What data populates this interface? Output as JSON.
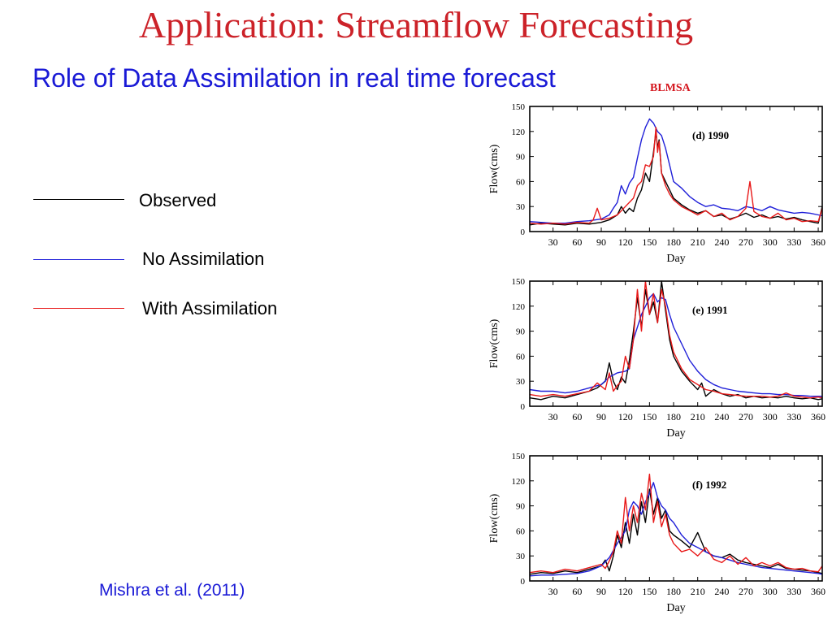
{
  "slide": {
    "title": "Application: Streamflow Forecasting",
    "subtitle": "Role of Data Assimilation in real time forecast",
    "model_tag": "BLMSA",
    "citation": "Mishra et al. (2011)"
  },
  "legend": [
    {
      "label": "Observed",
      "color": "#000000"
    },
    {
      "label": "No Assimilation",
      "color": "#1f1fd8"
    },
    {
      "label": "With Assimilation",
      "color": "#e81818"
    }
  ],
  "chart_data": [
    {
      "type": "line",
      "panel_label": "(d) 1990",
      "xlabel": "Day",
      "ylabel": "Flow(cms)",
      "xlim": [
        1,
        365
      ],
      "ylim": [
        0,
        150
      ],
      "xticks": [
        30,
        60,
        90,
        120,
        150,
        180,
        210,
        240,
        270,
        300,
        330,
        360
      ],
      "yticks": [
        0,
        30,
        60,
        90,
        120,
        150
      ],
      "series": [
        {
          "name": "Observed",
          "color": "#000000",
          "x": [
            1,
            15,
            30,
            45,
            60,
            75,
            90,
            100,
            110,
            115,
            120,
            125,
            130,
            135,
            140,
            145,
            150,
            155,
            158,
            160,
            162,
            165,
            170,
            175,
            180,
            190,
            200,
            210,
            220,
            230,
            240,
            250,
            260,
            270,
            280,
            290,
            300,
            310,
            320,
            330,
            340,
            350,
            360,
            365
          ],
          "y": [
            8,
            10,
            9,
            8,
            10,
            9,
            11,
            14,
            20,
            30,
            22,
            28,
            24,
            40,
            50,
            70,
            60,
            95,
            120,
            100,
            110,
            70,
            60,
            50,
            40,
            32,
            26,
            22,
            25,
            18,
            20,
            15,
            18,
            22,
            17,
            20,
            16,
            18,
            15,
            17,
            14,
            12,
            10,
            30
          ]
        },
        {
          "name": "No Assimilation",
          "color": "#1f1fd8",
          "x": [
            1,
            15,
            30,
            45,
            60,
            75,
            90,
            100,
            105,
            110,
            115,
            120,
            125,
            130,
            135,
            140,
            145,
            150,
            155,
            160,
            165,
            170,
            175,
            180,
            190,
            200,
            210,
            220,
            230,
            240,
            250,
            260,
            270,
            280,
            290,
            300,
            310,
            320,
            330,
            340,
            350,
            360,
            365
          ],
          "y": [
            12,
            11,
            10,
            10,
            12,
            13,
            15,
            20,
            28,
            35,
            55,
            45,
            58,
            65,
            88,
            110,
            125,
            135,
            130,
            120,
            115,
            100,
            80,
            60,
            52,
            42,
            35,
            30,
            32,
            28,
            27,
            25,
            30,
            28,
            25,
            30,
            26,
            24,
            22,
            23,
            22,
            20,
            19
          ]
        },
        {
          "name": "With Assimilation",
          "color": "#e81818",
          "x": [
            1,
            15,
            30,
            45,
            60,
            75,
            80,
            85,
            90,
            100,
            110,
            120,
            125,
            130,
            135,
            140,
            145,
            150,
            155,
            158,
            160,
            162,
            165,
            170,
            175,
            180,
            190,
            200,
            210,
            220,
            230,
            240,
            250,
            260,
            270,
            275,
            280,
            290,
            300,
            310,
            320,
            330,
            340,
            350,
            360,
            365
          ],
          "y": [
            10,
            9,
            10,
            9,
            11,
            10,
            14,
            28,
            14,
            16,
            20,
            30,
            35,
            40,
            55,
            60,
            80,
            78,
            90,
            125,
            95,
            108,
            70,
            55,
            45,
            38,
            30,
            25,
            20,
            25,
            18,
            22,
            14,
            18,
            28,
            60,
            24,
            18,
            16,
            22,
            14,
            16,
            12,
            13,
            12,
            28
          ]
        }
      ]
    },
    {
      "type": "line",
      "panel_label": "(e) 1991",
      "xlabel": "Day",
      "ylabel": "Flow(cms)",
      "xlim": [
        1,
        365
      ],
      "ylim": [
        0,
        150
      ],
      "xticks": [
        30,
        60,
        90,
        120,
        150,
        180,
        210,
        240,
        270,
        300,
        330,
        360
      ],
      "yticks": [
        0,
        30,
        60,
        90,
        120,
        150
      ],
      "series": [
        {
          "name": "Observed",
          "color": "#000000",
          "x": [
            1,
            15,
            30,
            45,
            60,
            75,
            85,
            95,
            100,
            105,
            110,
            115,
            120,
            125,
            130,
            135,
            140,
            145,
            150,
            155,
            160,
            165,
            170,
            175,
            180,
            190,
            200,
            210,
            215,
            220,
            230,
            240,
            250,
            260,
            270,
            280,
            290,
            300,
            310,
            320,
            330,
            340,
            350,
            360,
            365
          ],
          "y": [
            10,
            8,
            12,
            10,
            14,
            18,
            22,
            30,
            52,
            30,
            20,
            35,
            28,
            55,
            90,
            130,
            95,
            140,
            110,
            125,
            100,
            150,
            115,
            80,
            60,
            42,
            30,
            20,
            28,
            12,
            20,
            15,
            12,
            14,
            10,
            12,
            10,
            11,
            10,
            12,
            10,
            9,
            10,
            8,
            9
          ]
        },
        {
          "name": "No Assimilation",
          "color": "#1f1fd8",
          "x": [
            1,
            15,
            30,
            45,
            60,
            75,
            90,
            100,
            110,
            120,
            125,
            130,
            140,
            150,
            155,
            160,
            165,
            170,
            175,
            180,
            190,
            200,
            210,
            220,
            230,
            240,
            250,
            260,
            270,
            280,
            290,
            300,
            310,
            320,
            330,
            340,
            350,
            360,
            365
          ],
          "y": [
            20,
            18,
            18,
            16,
            18,
            22,
            26,
            35,
            40,
            42,
            45,
            80,
            110,
            130,
            135,
            125,
            130,
            128,
            110,
            95,
            75,
            55,
            42,
            32,
            26,
            22,
            20,
            18,
            17,
            16,
            15,
            15,
            14,
            14,
            13,
            13,
            12,
            12,
            12
          ]
        },
        {
          "name": "With Assimilation",
          "color": "#e81818",
          "x": [
            1,
            15,
            30,
            45,
            60,
            75,
            85,
            95,
            100,
            105,
            110,
            115,
            120,
            125,
            130,
            135,
            140,
            145,
            150,
            155,
            160,
            165,
            170,
            175,
            180,
            190,
            200,
            210,
            220,
            230,
            240,
            250,
            260,
            270,
            280,
            290,
            300,
            310,
            320,
            330,
            340,
            350,
            360,
            365
          ],
          "y": [
            14,
            12,
            14,
            12,
            15,
            18,
            28,
            20,
            40,
            18,
            25,
            30,
            60,
            45,
            80,
            140,
            90,
            150,
            110,
            135,
            100,
            140,
            120,
            85,
            65,
            45,
            32,
            26,
            20,
            18,
            15,
            14,
            13,
            12,
            12,
            12,
            11,
            12,
            16,
            12,
            11,
            10,
            11,
            10
          ]
        }
      ]
    },
    {
      "type": "line",
      "panel_label": "(f) 1992",
      "xlabel": "Day",
      "ylabel": "Flow(cms)",
      "xlim": [
        1,
        365
      ],
      "ylim": [
        0,
        150
      ],
      "xticks": [
        30,
        60,
        90,
        120,
        150,
        180,
        210,
        240,
        270,
        300,
        330,
        360
      ],
      "yticks": [
        0,
        30,
        60,
        90,
        120,
        150
      ],
      "series": [
        {
          "name": "Observed",
          "color": "#000000",
          "x": [
            1,
            15,
            30,
            45,
            60,
            75,
            90,
            95,
            100,
            105,
            110,
            115,
            120,
            125,
            130,
            135,
            140,
            145,
            150,
            155,
            160,
            165,
            170,
            175,
            180,
            190,
            200,
            210,
            220,
            230,
            240,
            250,
            260,
            270,
            280,
            290,
            300,
            310,
            320,
            330,
            340,
            350,
            360,
            365
          ],
          "y": [
            8,
            10,
            9,
            12,
            10,
            14,
            18,
            25,
            12,
            30,
            55,
            40,
            70,
            45,
            80,
            55,
            95,
            70,
            110,
            80,
            100,
            75,
            85,
            60,
            55,
            48,
            40,
            58,
            35,
            30,
            28,
            32,
            25,
            22,
            20,
            18,
            16,
            20,
            15,
            14,
            13,
            12,
            10,
            9
          ]
        },
        {
          "name": "No Assimilation",
          "color": "#1f1fd8",
          "x": [
            1,
            15,
            30,
            45,
            60,
            75,
            90,
            100,
            110,
            120,
            125,
            130,
            135,
            140,
            145,
            150,
            155,
            160,
            165,
            170,
            175,
            180,
            190,
            200,
            210,
            220,
            230,
            240,
            250,
            260,
            270,
            280,
            290,
            300,
            310,
            320,
            330,
            340,
            350,
            360,
            365
          ],
          "y": [
            6,
            7,
            7,
            8,
            9,
            12,
            18,
            28,
            45,
            60,
            85,
            95,
            90,
            80,
            95,
            105,
            118,
            100,
            90,
            85,
            75,
            70,
            55,
            45,
            40,
            35,
            30,
            28,
            25,
            22,
            20,
            18,
            16,
            15,
            14,
            13,
            12,
            11,
            10,
            9,
            8
          ]
        },
        {
          "name": "With Assimilation",
          "color": "#e81818",
          "x": [
            1,
            15,
            30,
            45,
            60,
            75,
            90,
            95,
            100,
            105,
            110,
            115,
            120,
            125,
            130,
            135,
            140,
            145,
            150,
            155,
            160,
            165,
            170,
            175,
            180,
            190,
            200,
            210,
            220,
            230,
            240,
            250,
            260,
            270,
            280,
            290,
            300,
            310,
            320,
            330,
            340,
            350,
            360,
            365
          ],
          "y": [
            10,
            12,
            10,
            14,
            12,
            16,
            20,
            15,
            24,
            35,
            60,
            45,
            100,
            60,
            90,
            70,
            105,
            85,
            128,
            70,
            95,
            65,
            80,
            55,
            45,
            35,
            38,
            30,
            40,
            26,
            22,
            30,
            20,
            28,
            18,
            22,
            18,
            22,
            16,
            14,
            15,
            12,
            11,
            18
          ]
        }
      ]
    }
  ]
}
